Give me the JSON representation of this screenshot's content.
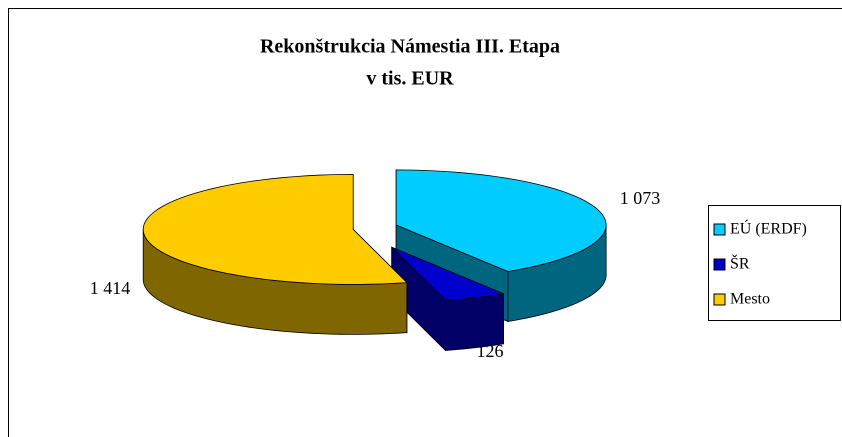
{
  "chart_data": {
    "type": "pie",
    "title": "Rekonštrukcia Námestia III. Etapa",
    "subtitle": "v tis. EUR",
    "categories": [
      "EÚ (ERDF)",
      "ŠR",
      "Mesto"
    ],
    "values": [
      1073,
      126,
      1414
    ],
    "value_labels": [
      "1 073",
      "126",
      "1 414"
    ],
    "colors": [
      "#00ccff",
      "#0000cc",
      "#ffcc00"
    ],
    "legend": "right"
  }
}
